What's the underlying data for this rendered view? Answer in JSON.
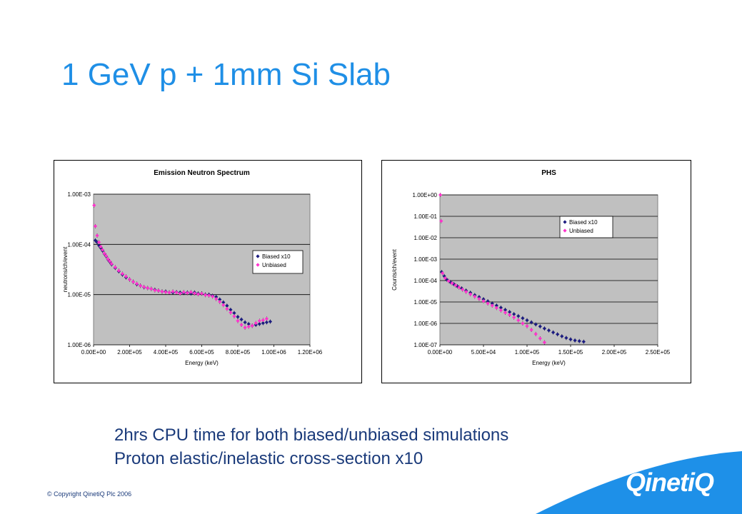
{
  "slide": {
    "title": "1 GeV p + 1mm Si Slab",
    "bullets": [
      "2hrs CPU time for both biased/unbiased simulations",
      "Proton elastic/inelastic cross-section x10"
    ],
    "copyright": "© Copyright QinetiQ Plc 2006",
    "logo": "QinetiQ"
  },
  "colors": {
    "title": "#1f8fe6",
    "plot_bg": "#c0c0c0",
    "biased": "#1c1c80",
    "unbiased": "#ff33cc",
    "brand": "#1e90e8"
  },
  "chart_data": [
    {
      "type": "scatter",
      "title": "Emission Neutron Spectrum",
      "xlabel": "Energy (keV)",
      "ylabel": "neutrons/ch/event",
      "xlim": [
        0,
        1200000
      ],
      "ylim": [
        1e-06,
        0.001
      ],
      "yscale": "log",
      "xticks": [
        "0.00E+00",
        "2.00E+05",
        "4.00E+05",
        "6.00E+05",
        "8.00E+05",
        "1.00E+06",
        "1.20E+06"
      ],
      "yticks": [
        "1.00E-06",
        "1.00E-05",
        "1.00E-04",
        "1.00E-03"
      ],
      "grid": true,
      "legend_position": "right",
      "series": [
        {
          "name": "Biased x10",
          "marker": "diamond",
          "color": "#1c1c80",
          "x": [
            10000,
            20000,
            30000,
            40000,
            50000,
            60000,
            70000,
            80000,
            90000,
            100000,
            120000,
            140000,
            160000,
            180000,
            200000,
            220000,
            240000,
            260000,
            280000,
            300000,
            320000,
            340000,
            360000,
            380000,
            400000,
            420000,
            440000,
            460000,
            480000,
            500000,
            520000,
            540000,
            560000,
            580000,
            600000,
            620000,
            640000,
            660000,
            680000,
            700000,
            720000,
            740000,
            760000,
            780000,
            800000,
            820000,
            840000,
            860000,
            880000,
            900000,
            920000,
            940000,
            960000,
            980000
          ],
          "y": [
            0.00012,
            0.00011,
            9.5e-05,
            8.5e-05,
            7.5e-05,
            6.5e-05,
            5.8e-05,
            5e-05,
            4.5e-05,
            4e-05,
            3.4e-05,
            2.9e-05,
            2.5e-05,
            2.2e-05,
            2e-05,
            1.8e-05,
            1.6e-05,
            1.5e-05,
            1.4e-05,
            1.35e-05,
            1.3e-05,
            1.25e-05,
            1.2e-05,
            1.15e-05,
            1.15e-05,
            1.1e-05,
            1.1e-05,
            1.12e-05,
            1.1e-05,
            1.08e-05,
            1.1e-05,
            1.05e-05,
            1.1e-05,
            1.05e-05,
            1.05e-05,
            1e-05,
            1e-05,
            9.5e-06,
            9e-06,
            8e-06,
            7e-06,
            6e-06,
            5e-06,
            4.3e-06,
            3.6e-06,
            3.2e-06,
            2.8e-06,
            2.6e-06,
            2.4e-06,
            2.5e-06,
            2.6e-06,
            2.7e-06,
            2.8e-06,
            2.9e-06
          ]
        },
        {
          "name": "Unbiased",
          "marker": "diamond",
          "color": "#ff33cc",
          "x": [
            3000,
            10000,
            20000,
            30000,
            40000,
            50000,
            60000,
            70000,
            80000,
            90000,
            100000,
            120000,
            140000,
            160000,
            180000,
            200000,
            220000,
            240000,
            260000,
            280000,
            300000,
            320000,
            340000,
            360000,
            380000,
            400000,
            420000,
            440000,
            460000,
            480000,
            500000,
            520000,
            540000,
            560000,
            580000,
            600000,
            620000,
            640000,
            660000,
            680000,
            700000,
            720000,
            740000,
            760000,
            780000,
            800000,
            820000,
            840000,
            860000,
            880000,
            900000,
            920000,
            940000,
            960000
          ],
          "y": [
            0.0006,
            0.00023,
            0.00015,
            0.00011,
            9e-05,
            7.8e-05,
            6.6e-05,
            5.9e-05,
            5.1e-05,
            4.6e-05,
            4.1e-05,
            3.5e-05,
            3e-05,
            2.6e-05,
            2.3e-05,
            2e-05,
            1.8e-05,
            1.65e-05,
            1.5e-05,
            1.42e-05,
            1.35e-05,
            1.3e-05,
            1.22e-05,
            1.2e-05,
            1.15e-05,
            1.12e-05,
            1.1e-05,
            1.15e-05,
            1.1e-05,
            1.05e-05,
            1.12e-05,
            1.08e-05,
            1.12e-05,
            1.06e-05,
            1.02e-05,
            1.05e-05,
            9.8e-06,
            9.6e-06,
            9.2e-06,
            8.2e-06,
            7.2e-06,
            6.2e-06,
            5.2e-06,
            4.4e-06,
            3.7e-06,
            3e-06,
            2.5e-06,
            2.2e-06,
            2.3e-06,
            2.4e-06,
            2.7e-06,
            3e-06,
            3.1e-06,
            3.3e-06
          ]
        }
      ]
    },
    {
      "type": "scatter",
      "title": "PHS",
      "xlabel": "Energy (keV)",
      "ylabel": "Counts/ch/event",
      "xlim": [
        0,
        250000
      ],
      "ylim": [
        1e-07,
        1
      ],
      "yscale": "log",
      "xticks": [
        "0.00E+00",
        "5.00E+04",
        "1.00E+05",
        "1.50E+05",
        "2.00E+05",
        "2.50E+05"
      ],
      "yticks": [
        "1.00E-07",
        "1.00E-06",
        "1.00E-05",
        "1.00E-04",
        "1.00E-03",
        "1.00E-02",
        "1.00E-01",
        "1.00E+00"
      ],
      "grid": true,
      "legend_position": "top-right",
      "series": [
        {
          "name": "Biased x10",
          "marker": "diamond",
          "color": "#1c1c80",
          "x": [
            2000,
            5000,
            8000,
            12000,
            16000,
            20000,
            25000,
            30000,
            35000,
            40000,
            45000,
            50000,
            55000,
            60000,
            65000,
            70000,
            75000,
            80000,
            85000,
            90000,
            95000,
            100000,
            105000,
            110000,
            115000,
            120000,
            125000,
            130000,
            135000,
            140000,
            145000,
            150000,
            155000,
            160000,
            165000
          ],
          "y": [
            0.00025,
            0.00016,
            0.00011,
            8.5e-05,
            6.8e-05,
            5.4e-05,
            4.3e-05,
            3.4e-05,
            2.7e-05,
            2.1e-05,
            1.7e-05,
            1.35e-05,
            1.08e-05,
            8.5e-06,
            6.8e-06,
            5.4e-06,
            4.3e-06,
            3.4e-06,
            2.7e-06,
            2.2e-06,
            1.75e-06,
            1.4e-06,
            1.12e-06,
            9e-07,
            7.2e-07,
            5.8e-07,
            4.7e-07,
            3.8e-07,
            3.1e-07,
            2.5e-07,
            2.1e-07,
            1.8e-07,
            1.6e-07,
            1.5e-07,
            1.4e-07
          ]
        },
        {
          "name": "Unbiased",
          "marker": "diamond",
          "color": "#ff33cc",
          "x": [
            500,
            1500,
            3000,
            6000,
            10000,
            14000,
            18000,
            22000,
            26000,
            30000,
            35000,
            40000,
            45000,
            50000,
            55000,
            60000,
            65000,
            70000,
            75000,
            80000,
            85000,
            90000,
            95000,
            100000,
            105000,
            110000,
            115000,
            120000
          ],
          "y": [
            1.0,
            0.06,
            0.00022,
            0.00013,
            9.5e-05,
            7.5e-05,
            6e-05,
            4.8e-05,
            3.8e-05,
            3e-05,
            2.3e-05,
            1.8e-05,
            1.4e-05,
            1.1e-05,
            8.6e-06,
            6.8e-06,
            5.3e-06,
            4.1e-06,
            3.2e-06,
            2.5e-06,
            1.9e-06,
            1.4e-06,
            1e-06,
            7.5e-07,
            5e-07,
            3.2e-07,
            2e-07,
            1.3e-07
          ]
        }
      ]
    }
  ]
}
